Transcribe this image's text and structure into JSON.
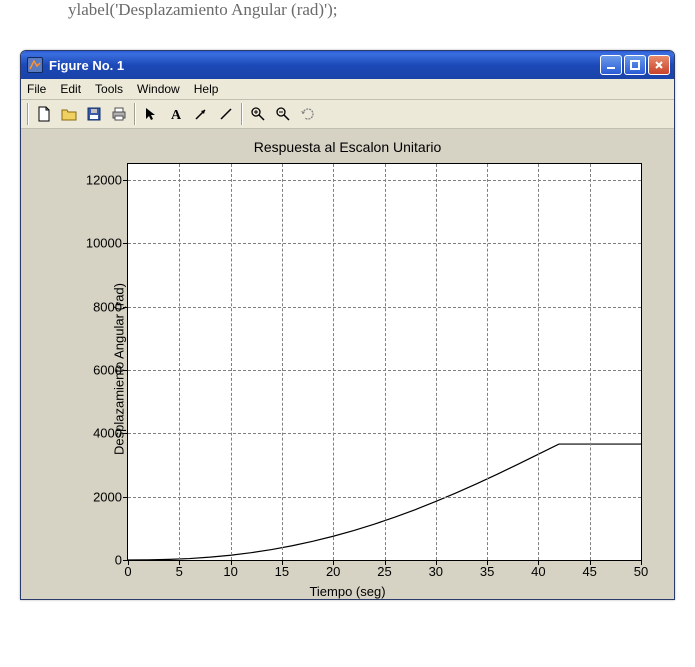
{
  "code_fragment": "ylabel('Desplazamiento Angular (rad)');",
  "window": {
    "title": "Figure No. 1",
    "buttons": {
      "minimize": "_",
      "maximize": "□",
      "close": "×"
    }
  },
  "menu": {
    "file": "File",
    "edit": "Edit",
    "tools": "Tools",
    "window": "Window",
    "help": "Help"
  },
  "toolbar_icons": [
    "new",
    "open",
    "save",
    "print",
    "sep",
    "pointer",
    "text",
    "arrow",
    "line",
    "sep",
    "zoom-in",
    "zoom-out",
    "rotate"
  ],
  "chart": {
    "type": "line",
    "title": "Respuesta al Escalon Unitario",
    "xlabel": "Tiempo (seg)",
    "ylabel": "Desplazamiento Angular (rad)",
    "title_fontsize": 14,
    "label_fontsize": 13,
    "xlim": [
      0,
      50
    ],
    "ylim": [
      0,
      12500
    ],
    "xticks": [
      0,
      5,
      10,
      15,
      20,
      25,
      30,
      35,
      40,
      45,
      50
    ],
    "yticks": [
      0,
      2000,
      4000,
      6000,
      8000,
      10000,
      12000
    ],
    "grid": true,
    "grid_style": "dashed",
    "grid_color": "#808080",
    "background_color": "#ffffff",
    "figure_background": "#d6d3c4",
    "axis_color": "#000000",
    "line_color": "#000000",
    "line_width": 1.2,
    "data": {
      "x": [
        0,
        2,
        4,
        6,
        8,
        10,
        12,
        14,
        16,
        18,
        20,
        22,
        24,
        26,
        28,
        30,
        32,
        34,
        36,
        38,
        40,
        42,
        44,
        46,
        48,
        50
      ],
      "y": [
        0,
        5,
        20,
        45,
        90,
        150,
        230,
        330,
        450,
        590,
        750,
        930,
        1130,
        1350,
        1590,
        1850,
        2120,
        2410,
        2710,
        3020,
        3340,
        3660,
        3660,
        3660,
        3660,
        3660
      ]
    },
    "data_note": "y values approximate; curve visually ends near (50, 3700)"
  },
  "colors": {
    "titlebar_gradient_top": "#2a5bd7",
    "titlebar_gradient_bottom": "#1a43a8",
    "close_button": "#c8432a",
    "window_chrome": "#ece9d8"
  }
}
